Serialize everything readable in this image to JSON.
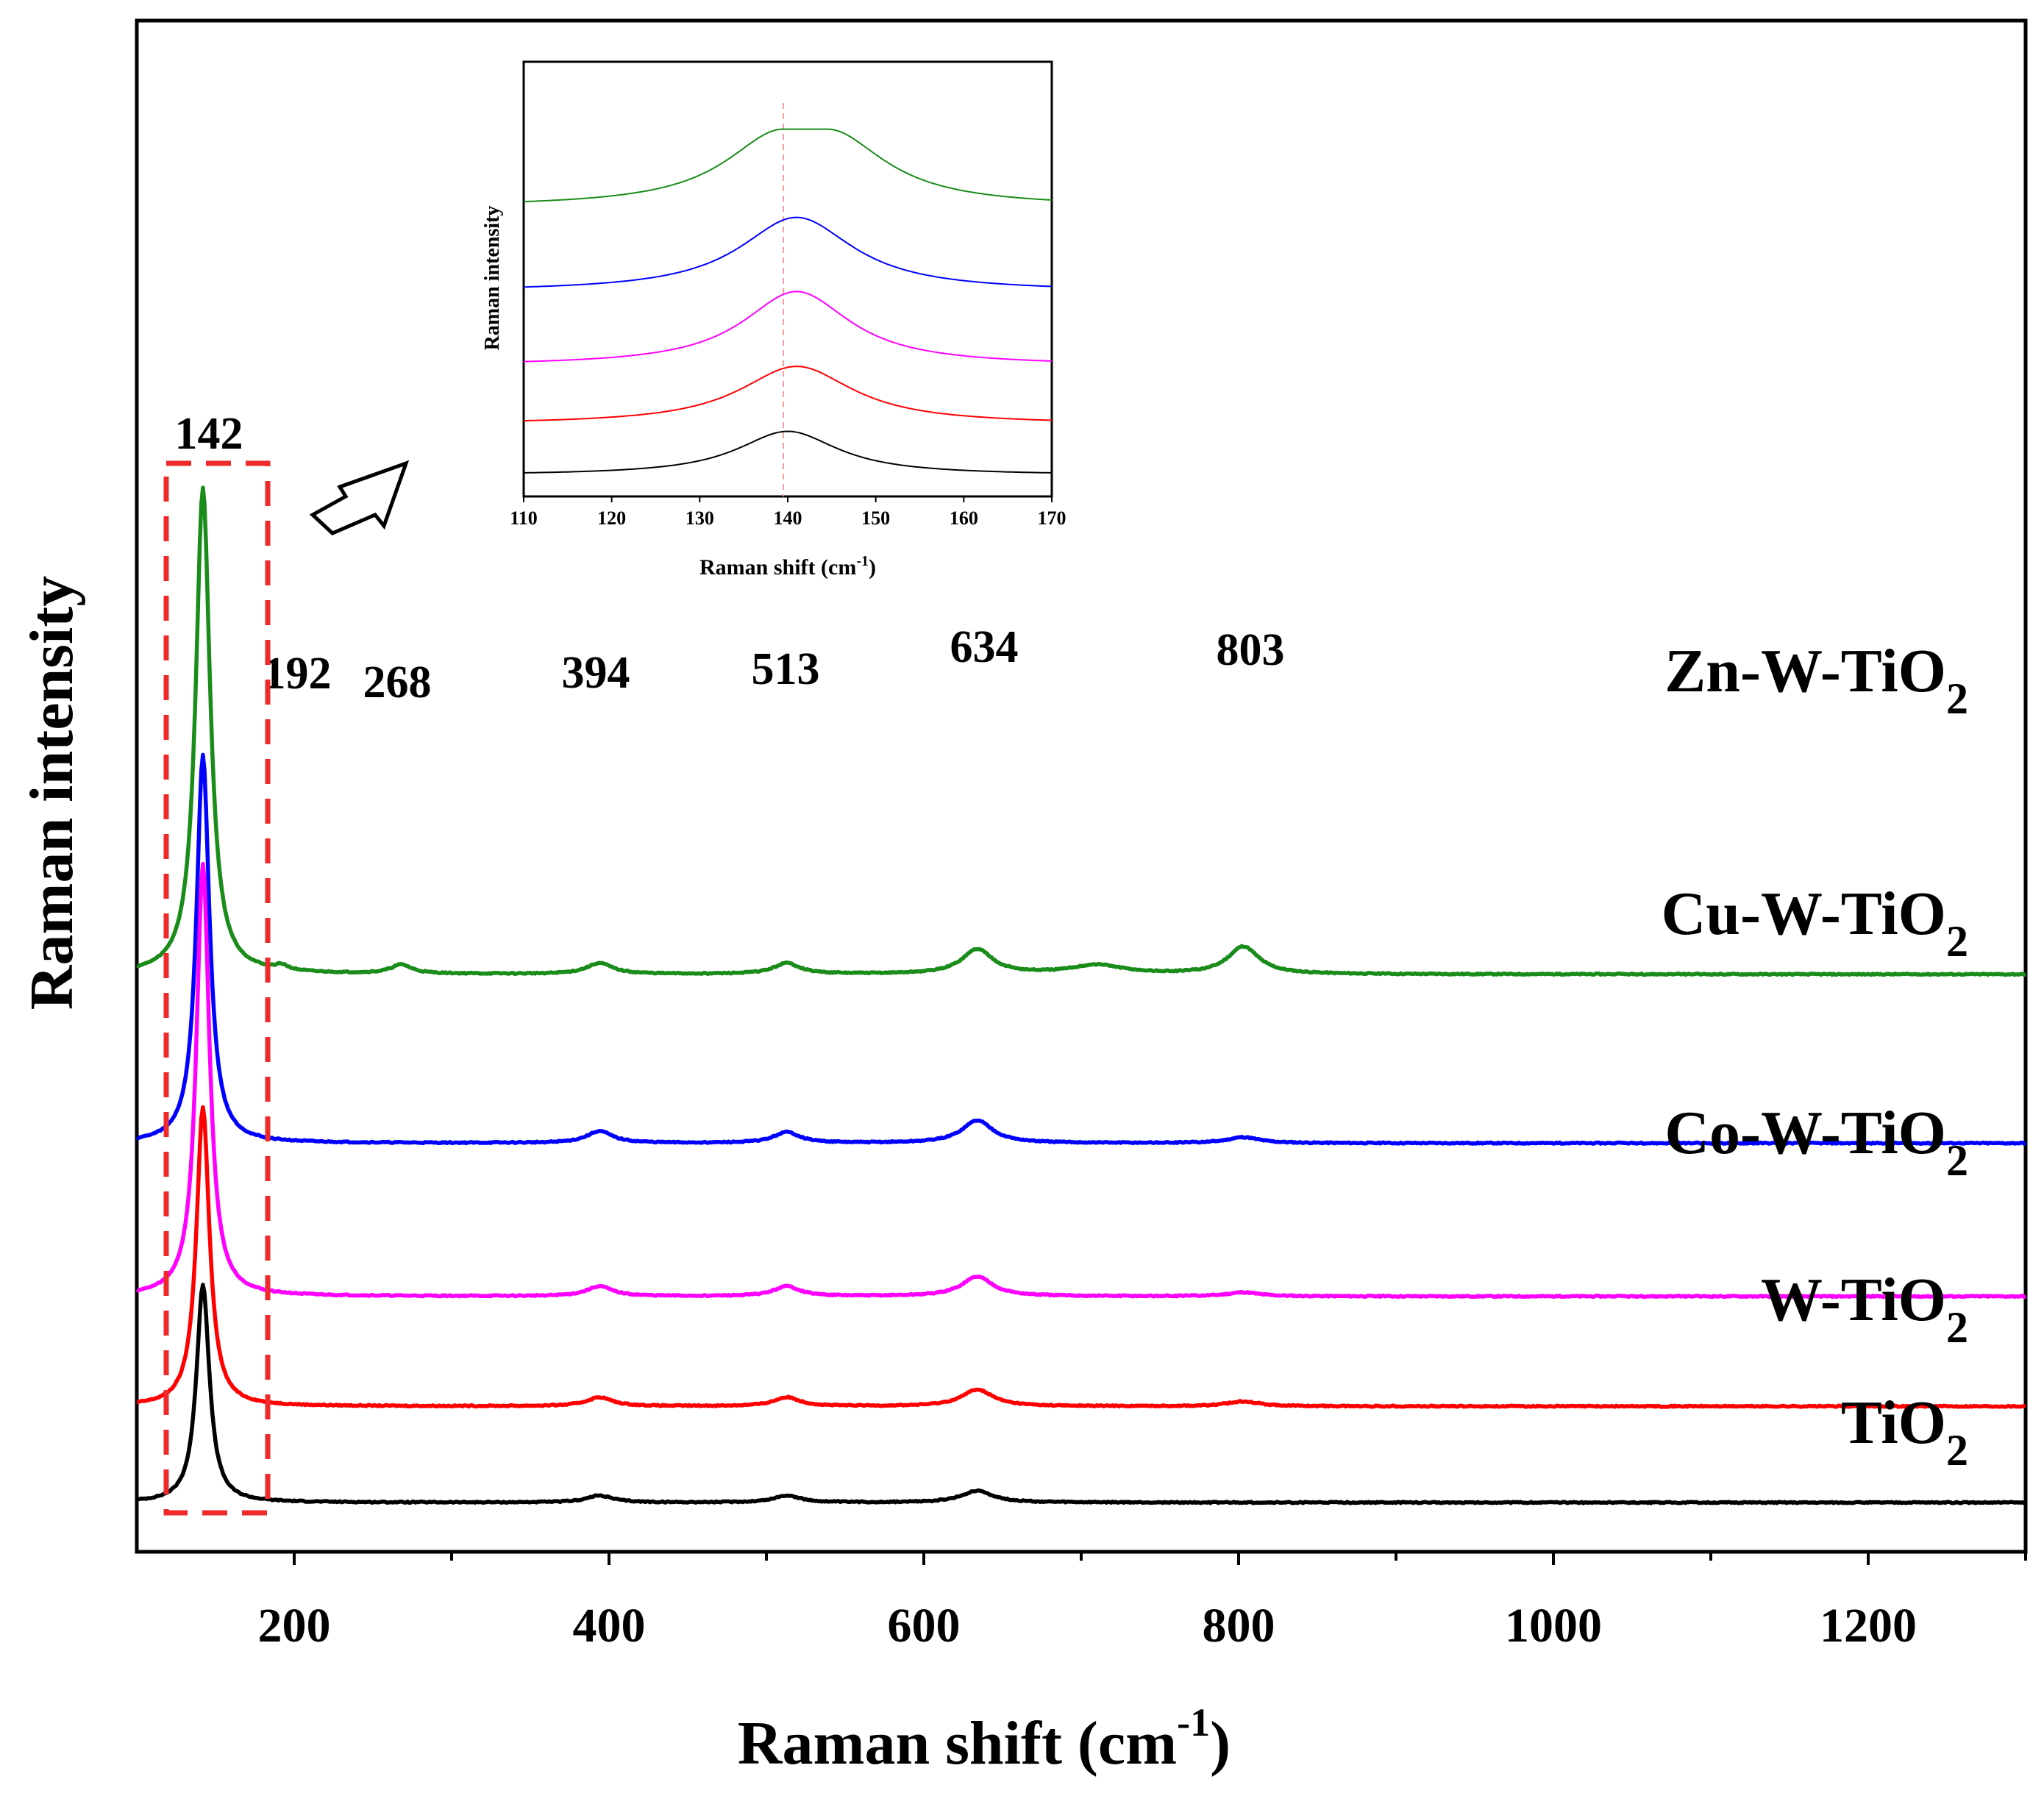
{
  "chart_data": {
    "type": "line",
    "xlabel": "Raman shift (cm",
    "xlabel_sup": "-1",
    "xlabel_end": ")",
    "ylabel": "Raman intensity",
    "xlim": [
      100,
      1300
    ],
    "ylim": [
      0,
      11.2
    ],
    "xticks": [
      "200",
      "400",
      "600",
      "800",
      "1000",
      "1200"
    ],
    "peak_labels": [
      "142",
      "192",
      "268",
      "394",
      "513",
      "634",
      "803"
    ],
    "series": [
      {
        "name": "Zn-W-TiO",
        "sub": "2",
        "color": "#1a8c1a",
        "baseline": 5.38,
        "peaks": [
          {
            "x": 142,
            "h": 4.95,
            "w": 5.5
          },
          {
            "x": 192,
            "h": 0.05,
            "w": 5
          },
          {
            "x": 268,
            "h": 0.09,
            "w": 8
          },
          {
            "x": 394,
            "h": 0.11,
            "w": 10
          },
          {
            "x": 513,
            "h": 0.11,
            "w": 10
          },
          {
            "x": 634,
            "h": 0.25,
            "w": 12
          },
          {
            "x": 710,
            "h": 0.09,
            "w": 20
          },
          {
            "x": 803,
            "h": 0.28,
            "w": 12
          }
        ]
      },
      {
        "name": "Cu-W-TiO",
        "sub": "2",
        "color": "#0000ff",
        "baseline": 3.66,
        "peaks": [
          {
            "x": 142,
            "h": 3.95,
            "w": 5
          },
          {
            "x": 394,
            "h": 0.12,
            "w": 10
          },
          {
            "x": 513,
            "h": 0.11,
            "w": 10
          },
          {
            "x": 634,
            "h": 0.23,
            "w": 12
          },
          {
            "x": 803,
            "h": 0.06,
            "w": 12
          }
        ]
      },
      {
        "name": "Co-W-TiO",
        "sub": "2",
        "color": "#ff00ff",
        "baseline": 2.1,
        "peaks": [
          {
            "x": 142,
            "h": 4.4,
            "w": 5
          },
          {
            "x": 394,
            "h": 0.1,
            "w": 10
          },
          {
            "x": 513,
            "h": 0.1,
            "w": 10
          },
          {
            "x": 634,
            "h": 0.2,
            "w": 12
          },
          {
            "x": 803,
            "h": 0.04,
            "w": 12
          }
        ]
      },
      {
        "name": "W-TiO",
        "sub": "2",
        "color": "#ff0000",
        "baseline": 0.98,
        "peaks": [
          {
            "x": 142,
            "h": 3.05,
            "w": 5
          },
          {
            "x": 394,
            "h": 0.09,
            "w": 10
          },
          {
            "x": 513,
            "h": 0.09,
            "w": 10
          },
          {
            "x": 634,
            "h": 0.17,
            "w": 12
          },
          {
            "x": 803,
            "h": 0.05,
            "w": 12
          }
        ]
      },
      {
        "name": "TiO",
        "sub": "2",
        "color": "#000000",
        "baseline": 0.0,
        "peaks": [
          {
            "x": 142,
            "h": 2.22,
            "w": 5
          },
          {
            "x": 394,
            "h": 0.07,
            "w": 10
          },
          {
            "x": 513,
            "h": 0.07,
            "w": 10
          },
          {
            "x": 634,
            "h": 0.12,
            "w": 12
          }
        ]
      }
    ],
    "inset": {
      "xlabel": "Raman shift (cm",
      "xlabel_sup": "-1",
      "xlabel_end": ")",
      "ylabel": "Raman intensity",
      "xlim": [
        110,
        170
      ],
      "xticks": [
        "110",
        "120",
        "130",
        "140",
        "150",
        "160",
        "170"
      ],
      "series": [
        {
          "name": "Zn-W-TiO2",
          "color": "#1a8c1a",
          "level": 3.8,
          "center": 142,
          "height": 1.1,
          "width": 9,
          "flat": true
        },
        {
          "name": "Cu-W-TiO2",
          "color": "#0000ff",
          "level": 2.6,
          "center": 141,
          "height": 1.05,
          "width": 9,
          "flat": false
        },
        {
          "name": "Co-W-TiO2",
          "color": "#ff00ff",
          "level": 1.55,
          "center": 141,
          "height": 1.05,
          "width": 8.5,
          "flat": false
        },
        {
          "name": "W-TiO2",
          "color": "#ff0000",
          "level": 0.72,
          "center": 141,
          "height": 0.82,
          "width": 9,
          "flat": false
        },
        {
          "name": "TiO2",
          "color": "#000000",
          "level": 0.0,
          "center": 140,
          "height": 0.62,
          "width": 8,
          "flat": false
        }
      ]
    }
  }
}
